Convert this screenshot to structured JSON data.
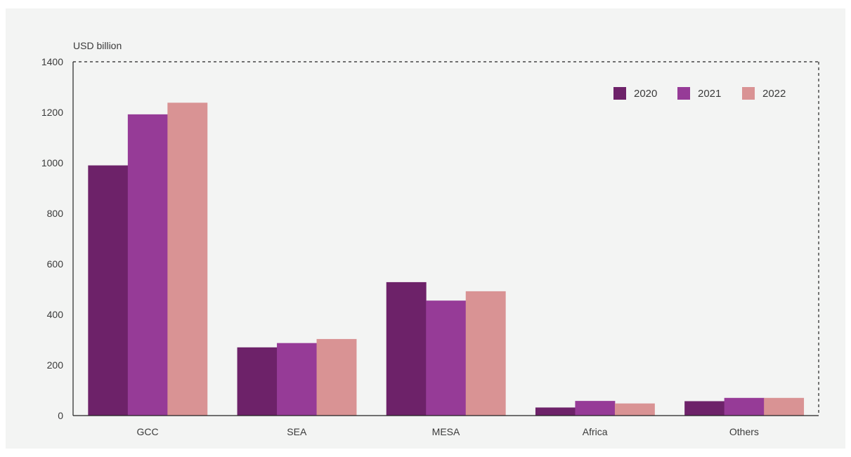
{
  "chart_data": {
    "type": "bar",
    "y_unit_label": "USD billion",
    "categories": [
      "GCC",
      "SEA",
      "MESA",
      "Africa",
      "Others"
    ],
    "series": [
      {
        "name": "2020",
        "values": [
          990,
          270,
          528,
          32,
          57
        ],
        "color": "#6d2269"
      },
      {
        "name": "2021",
        "values": [
          1192,
          287,
          455,
          58,
          70
        ],
        "color": "#963b97"
      },
      {
        "name": "2022",
        "values": [
          1238,
          303,
          492,
          48,
          70
        ],
        "color": "#d99394"
      }
    ],
    "y_ticks": [
      "0",
      "200",
      "400",
      "600",
      "800",
      "1000",
      "1200",
      "1400"
    ],
    "ylim": [
      0,
      1400
    ],
    "legend_position": "top-right",
    "grid": false,
    "frame": "dashed"
  }
}
